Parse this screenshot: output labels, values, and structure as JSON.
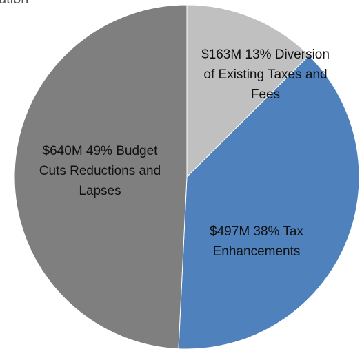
{
  "chart_data": {
    "type": "pie",
    "title": "ution",
    "slices": [
      {
        "label": "Diversion of Existing Taxes and Fees",
        "amount": "$163M",
        "value": 163,
        "percent": 13,
        "color": "#c0c0c0",
        "label_lines": [
          "$163M 13% Diversion",
          "of Existing Taxes and",
          "Fees"
        ]
      },
      {
        "label": "Tax Enhancements",
        "amount": "$497M",
        "value": 497,
        "percent": 38,
        "color": "#4f81bd",
        "label_lines": [
          "$497M 38% Tax",
          "Enhancements"
        ]
      },
      {
        "label": "Budget Cuts Reductions and Lapses",
        "amount": "$640M",
        "value": 640,
        "percent": 49,
        "color": "#7f7f7f",
        "label_lines": [
          "$640M 49% Budget",
          "Cuts Reductions and",
          "Lapses"
        ]
      }
    ],
    "start_angle_deg": 0,
    "direction": "clockwise"
  }
}
